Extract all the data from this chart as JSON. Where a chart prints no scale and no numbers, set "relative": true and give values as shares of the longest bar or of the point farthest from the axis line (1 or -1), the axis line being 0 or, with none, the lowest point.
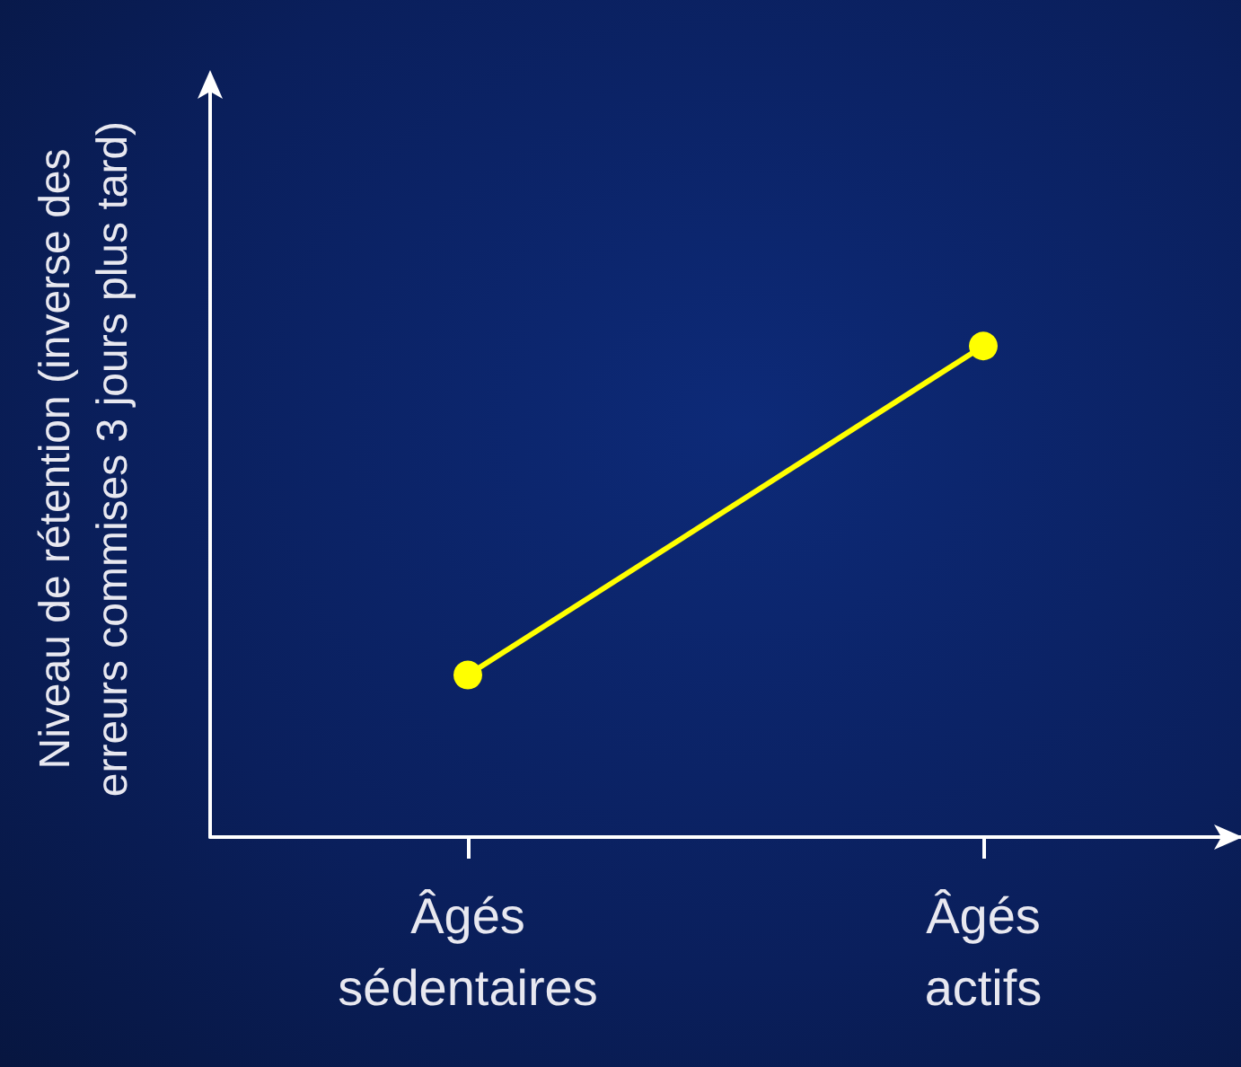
{
  "chart_data": {
    "type": "line",
    "relative": true,
    "ylabel": "Niveau de rétention (inverse des erreurs commises 3 jours plus tard)",
    "categories": [
      "Âgés sédentaires",
      "Âgés actifs"
    ],
    "series": [
      {
        "color": "#ffff00",
        "values": [
          0.33,
          1
        ]
      }
    ],
    "marker": "circle",
    "line_style": "solid",
    "grid": false
  }
}
